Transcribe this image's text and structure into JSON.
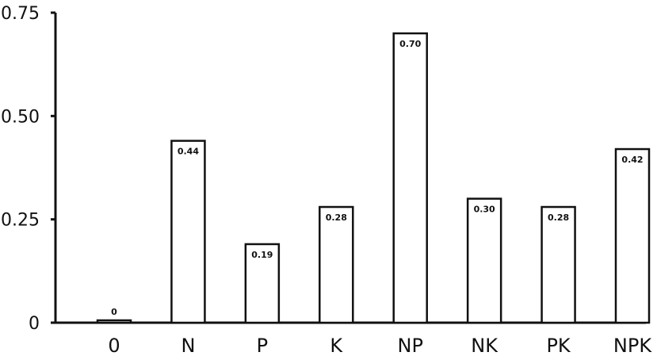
{
  "chart_data": {
    "type": "bar",
    "categories": [
      "0",
      "N",
      "P",
      "K",
      "NP",
      "NK",
      "PK",
      "NPK"
    ],
    "values": [
      0,
      0.44,
      0.19,
      0.28,
      0.7,
      0.3,
      0.28,
      0.42
    ],
    "data_labels": [
      "0",
      "0.44",
      "0.19",
      "0.28",
      "0.70",
      "0.30",
      "0.28",
      "0.42"
    ],
    "y_ticks": [
      0,
      0.25,
      0.5,
      0.75
    ],
    "y_tick_labels": [
      "0",
      "0.25",
      "0.50",
      "0.75"
    ],
    "ylim": [
      0,
      0.75
    ],
    "title": "",
    "xlabel": "",
    "ylabel": "",
    "grid": false,
    "colors": {
      "bar_fill": "#ffffff",
      "bar_stroke": "#111111"
    }
  }
}
